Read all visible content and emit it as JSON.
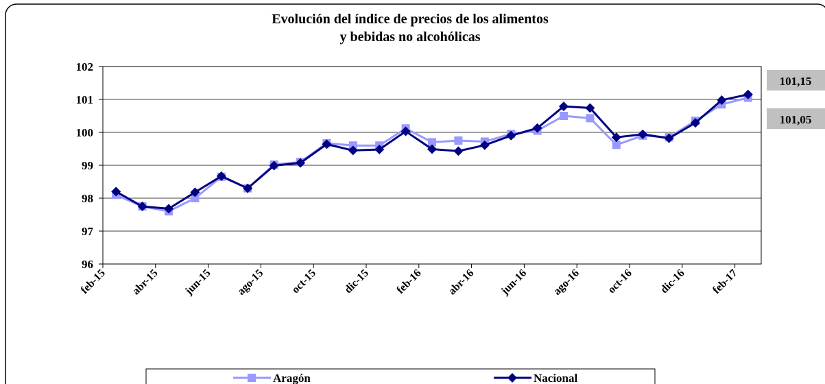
{
  "chart_data": {
    "type": "line",
    "title": "Evolución del índice de precios de los alimentos",
    "subtitle": "y bebidas no alcohólicas",
    "categories": [
      "feb-15",
      null,
      "abr-15",
      null,
      "jun-15",
      null,
      "ago-15",
      null,
      "oct-15",
      null,
      "dic-15",
      null,
      "feb-16",
      null,
      "abr-16",
      null,
      "jun-16",
      null,
      "ago-16",
      null,
      "oct-16",
      null,
      "dic-16",
      null,
      "feb-17"
    ],
    "series": [
      {
        "name": "Aragón",
        "color": "#9999ff",
        "marker": "square",
        "values": [
          98.1,
          97.75,
          97.6,
          98.0,
          98.65,
          98.3,
          99.02,
          99.1,
          99.67,
          99.6,
          99.6,
          100.12,
          99.7,
          99.75,
          99.72,
          99.95,
          100.05,
          100.5,
          100.43,
          99.62,
          99.9,
          99.85,
          100.35,
          100.85,
          101.05
        ],
        "value_labels": [
          null,
          null,
          null,
          null,
          null,
          null,
          null,
          null,
          null,
          null,
          null,
          null,
          null,
          null,
          null,
          null,
          null,
          null,
          null,
          null,
          null,
          null,
          null,
          null,
          "101,05"
        ]
      },
      {
        "name": "Nacional",
        "color": "#000080",
        "marker": "diamond",
        "values": [
          98.2,
          97.75,
          97.68,
          98.18,
          98.67,
          98.3,
          98.99,
          99.07,
          99.64,
          99.45,
          99.48,
          100.03,
          99.49,
          99.43,
          99.61,
          99.9,
          100.13,
          100.79,
          100.74,
          99.85,
          99.94,
          99.82,
          100.29,
          100.98,
          101.15
        ],
        "value_labels": [
          null,
          null,
          null,
          null,
          null,
          null,
          null,
          null,
          null,
          null,
          null,
          null,
          null,
          null,
          null,
          null,
          null,
          null,
          null,
          null,
          null,
          null,
          null,
          null,
          "101,15"
        ]
      }
    ],
    "ylim": [
      96,
      102
    ],
    "yticks": [
      96,
      97,
      98,
      99,
      100,
      101,
      102
    ],
    "grid": true,
    "legend": "bottom"
  }
}
